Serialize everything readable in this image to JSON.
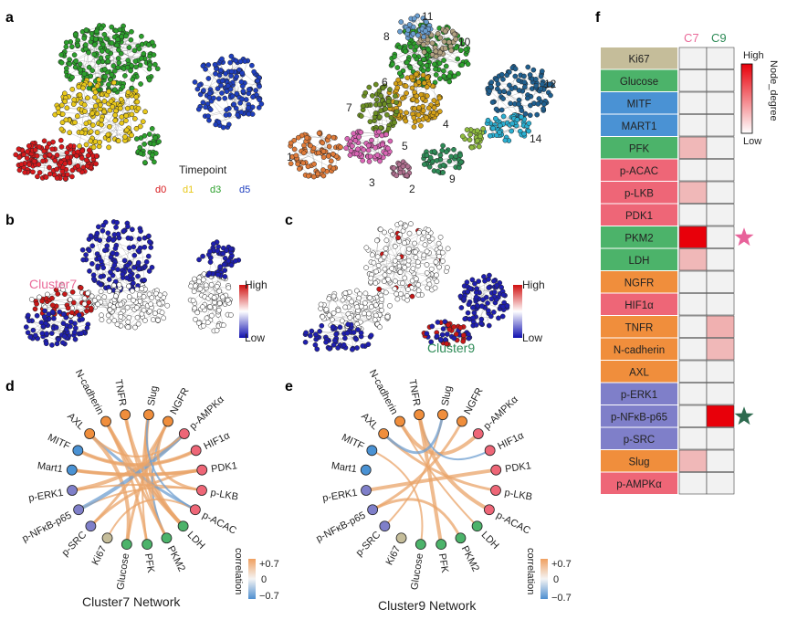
{
  "panels": {
    "a": {
      "letter": "a",
      "timepoint_title": "Timepoint",
      "timepoints": [
        {
          "label": "d0",
          "color": "#d7191c"
        },
        {
          "label": "d1",
          "color": "#e8c81a"
        },
        {
          "label": "d3",
          "color": "#2ca02c"
        },
        {
          "label": "d5",
          "color": "#1f3fbf"
        }
      ],
      "cluster_numbers": [
        "1",
        "2",
        "3",
        "4",
        "5",
        "6",
        "7",
        "8",
        "9",
        "10",
        "11",
        "12",
        "14"
      ]
    },
    "b": {
      "letter": "b",
      "cluster_label": "Cluster7",
      "scale_high": "High",
      "scale_low": "Low"
    },
    "c": {
      "letter": "c",
      "cluster_label": "Cluster9",
      "scale_high": "High",
      "scale_low": "Low"
    },
    "d": {
      "letter": "d",
      "caption": "Cluster7 Network"
    },
    "e": {
      "letter": "e",
      "caption": "Cluster9 Network"
    },
    "correlation": {
      "title": "correlation",
      "max": "+0.7",
      "mid": "0",
      "min": "−0.7"
    },
    "f": {
      "letter": "f",
      "columns": [
        "C7",
        "C9"
      ],
      "legend_title": "Node_degree",
      "legend_high": "High",
      "legend_low": "Low",
      "rows": [
        {
          "label": "Ki67",
          "color": "#c5bd9a",
          "c7": 0,
          "c9": 0
        },
        {
          "label": "Glucose",
          "color": "#4cb36a",
          "c7": 0,
          "c9": 0
        },
        {
          "label": "MITF",
          "color": "#4a92d4",
          "c7": 0,
          "c9": 0
        },
        {
          "label": "MART1",
          "color": "#4a92d4",
          "c7": 0,
          "c9": 0
        },
        {
          "label": "PFK",
          "color": "#4cb36a",
          "c7": 0.2,
          "c9": 0
        },
        {
          "label": "p-ACAC",
          "color": "#ee6677",
          "c7": 0,
          "c9": 0
        },
        {
          "label": "p-LKB",
          "color": "#ee6677",
          "c7": 0.2,
          "c9": 0
        },
        {
          "label": "PDK1",
          "color": "#ee6677",
          "c7": 0,
          "c9": 0
        },
        {
          "label": "PKM2",
          "color": "#4cb36a",
          "c7": 1.0,
          "c9": 0,
          "star": "c7"
        },
        {
          "label": "LDH",
          "color": "#4cb36a",
          "c7": 0.2,
          "c9": 0
        },
        {
          "label": "NGFR",
          "color": "#f08e3c",
          "c7": 0,
          "c9": 0
        },
        {
          "label": "HIF1α",
          "color": "#ee6677",
          "c7": 0,
          "c9": 0
        },
        {
          "label": "TNFR",
          "color": "#f08e3c",
          "c7": 0,
          "c9": 0.3
        },
        {
          "label": "N-cadherin",
          "color": "#f08e3c",
          "c7": 0,
          "c9": 0.2
        },
        {
          "label": "AXL",
          "color": "#f08e3c",
          "c7": 0,
          "c9": 0
        },
        {
          "label": "p-ERK1",
          "color": "#7f7fc9",
          "c7": 0,
          "c9": 0
        },
        {
          "label": "p-NFκB-p65",
          "color": "#7f7fc9",
          "c7": 0,
          "c9": 1.0,
          "star": "c9"
        },
        {
          "label": "p-SRC",
          "color": "#7f7fc9",
          "c7": 0,
          "c9": 0
        },
        {
          "label": "Slug",
          "color": "#f08e3c",
          "c7": 0.2,
          "c9": 0
        },
        {
          "label": "p-AMPKα",
          "color": "#ee6677",
          "c7": 0,
          "c9": 0
        }
      ]
    },
    "network_nodes": [
      {
        "label": "Slug",
        "color": "#f08e3c"
      },
      {
        "label": "NGFR",
        "color": "#f08e3c"
      },
      {
        "label": "p-AMPKα",
        "color": "#ee6677"
      },
      {
        "label": "HIF1α",
        "color": "#ee6677"
      },
      {
        "label": "PDK1",
        "color": "#ee6677"
      },
      {
        "label": "p-LKB",
        "color": "#ee6677"
      },
      {
        "label": "p-ACAC",
        "color": "#ee6677"
      },
      {
        "label": "LDH",
        "color": "#4cb36a"
      },
      {
        "label": "PKM2",
        "color": "#4cb36a"
      },
      {
        "label": "PFK",
        "color": "#4cb36a"
      },
      {
        "label": "Glucose",
        "color": "#4cb36a"
      },
      {
        "label": "Ki67",
        "color": "#c5bd9a"
      },
      {
        "label": "p-SRC",
        "color": "#7f7fc9"
      },
      {
        "label": "p-NFκB-p65",
        "color": "#7f7fc9"
      },
      {
        "label": "p-ERK1",
        "color": "#7f7fc9"
      },
      {
        "label": "Mart1",
        "color": "#4a92d4"
      },
      {
        "label": "MITF",
        "color": "#4a92d4"
      },
      {
        "label": "AXL",
        "color": "#f08e3c"
      },
      {
        "label": "N-cadherin",
        "color": "#f08e3c"
      },
      {
        "label": "TNFR",
        "color": "#f08e3c"
      }
    ],
    "net7_edges": [
      [
        0,
        9
      ],
      [
        0,
        8
      ],
      [
        0,
        7
      ],
      [
        1,
        8
      ],
      [
        1,
        10
      ],
      [
        2,
        14
      ],
      [
        3,
        16
      ],
      [
        4,
        12
      ],
      [
        4,
        15
      ],
      [
        5,
        13
      ],
      [
        6,
        17
      ],
      [
        7,
        18
      ],
      [
        8,
        19
      ],
      [
        9,
        18
      ],
      [
        10,
        17
      ],
      [
        11,
        6
      ],
      [
        12,
        1
      ],
      [
        13,
        2
      ],
      [
        14,
        5
      ],
      [
        15,
        4
      ],
      [
        16,
        3
      ],
      [
        17,
        2
      ],
      [
        18,
        8
      ],
      [
        19,
        7
      ],
      [
        0,
        6
      ],
      [
        1,
        5
      ]
    ],
    "net9_edges": [
      [
        0,
        12
      ],
      [
        1,
        13
      ],
      [
        2,
        18
      ],
      [
        3,
        19
      ],
      [
        5,
        17
      ],
      [
        6,
        19
      ],
      [
        7,
        18
      ],
      [
        8,
        13
      ],
      [
        9,
        19
      ],
      [
        10,
        16
      ],
      [
        0,
        17
      ],
      [
        4,
        14
      ]
    ]
  }
}
